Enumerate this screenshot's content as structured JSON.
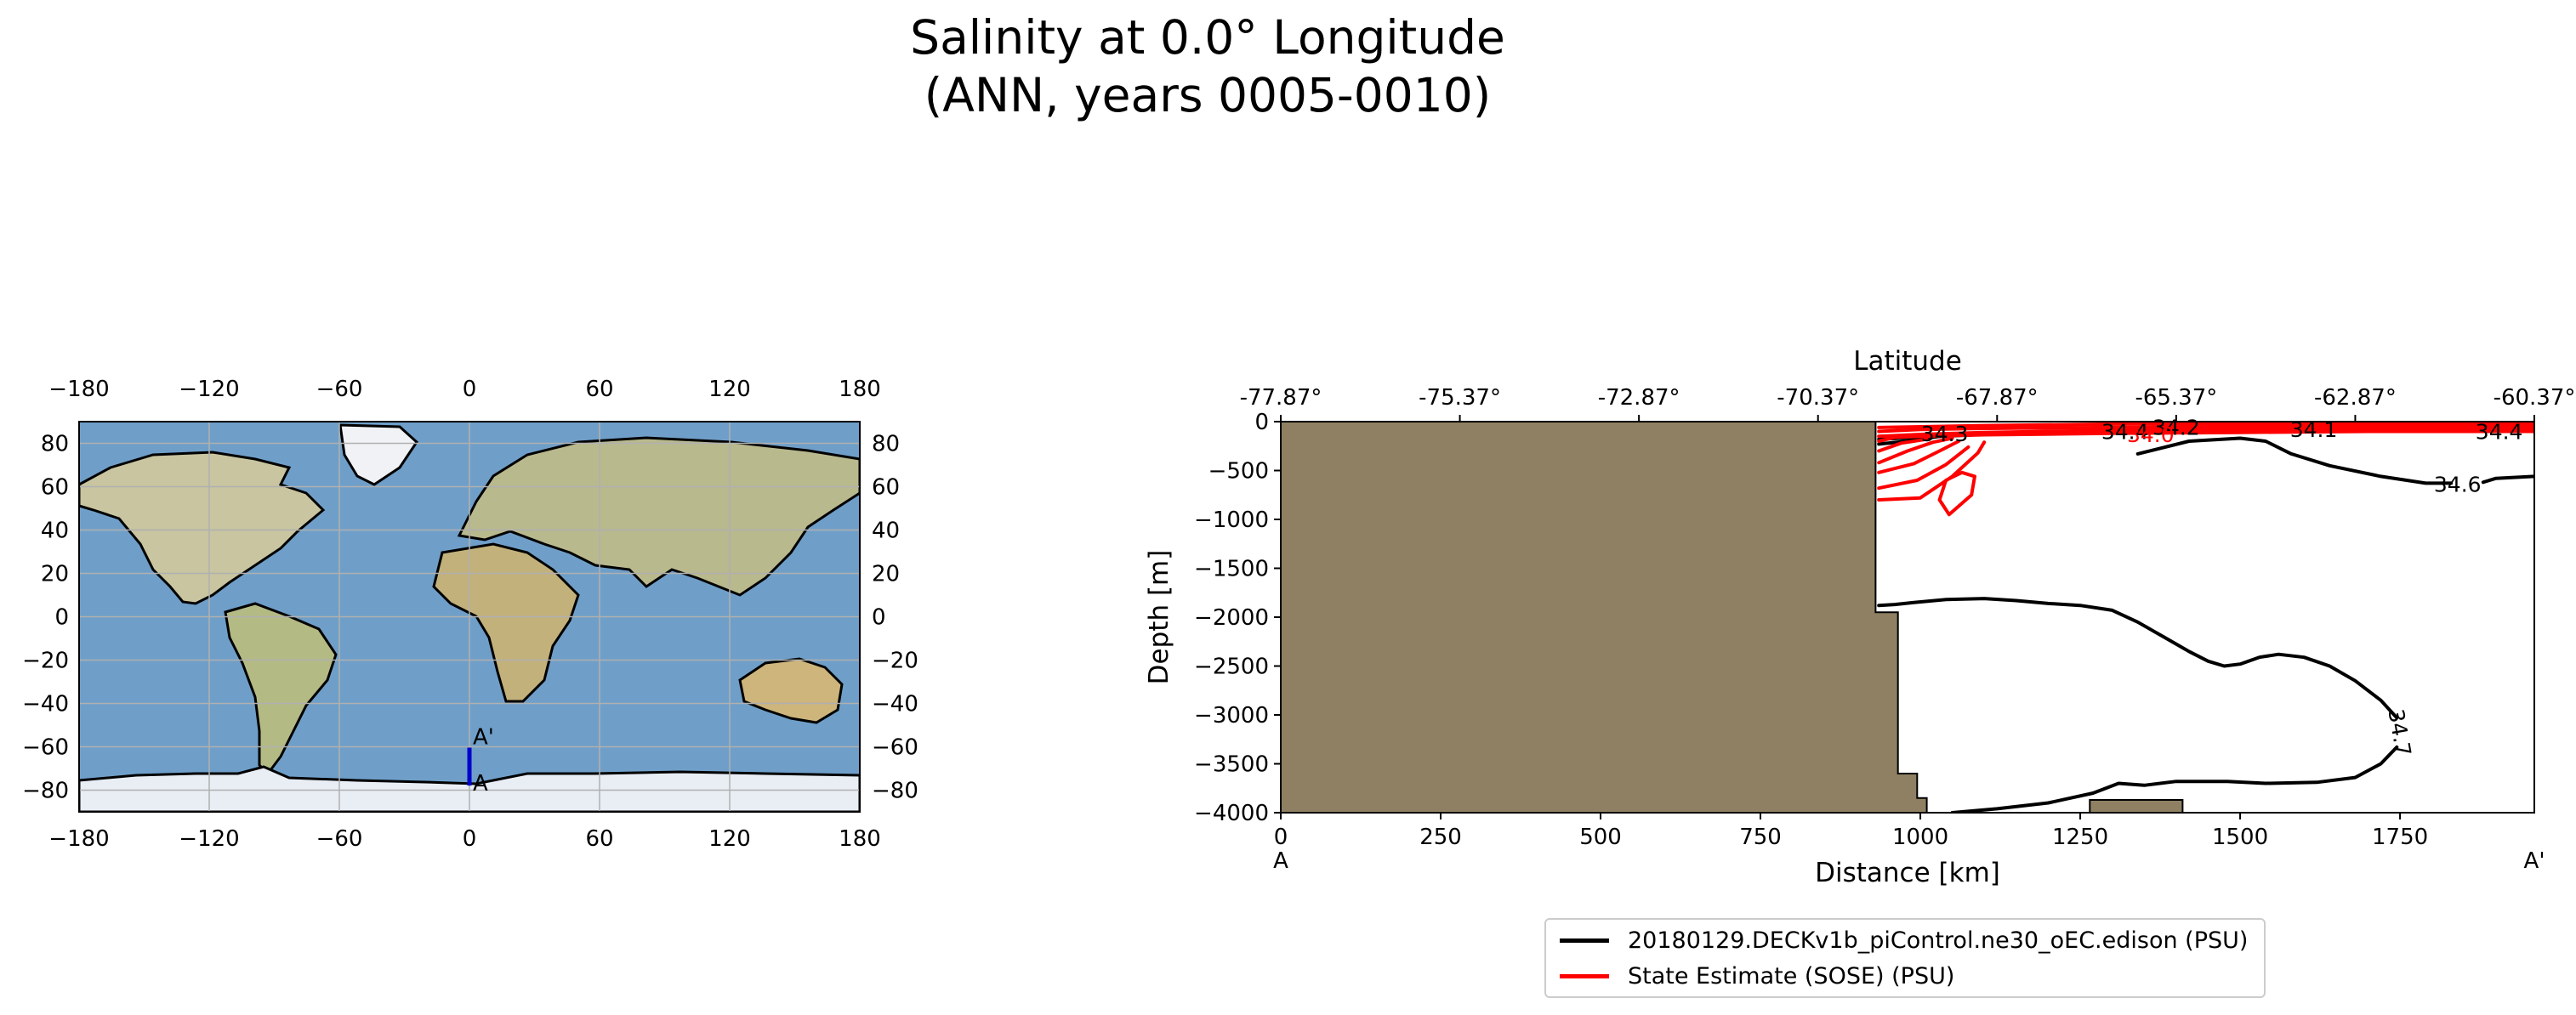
{
  "figure": {
    "title_line1": "Salinity at 0.0° Longitude",
    "title_line2": "(ANN, years 0005-0010)"
  },
  "chart_data": [
    {
      "type": "map",
      "projection": "PlateCarree",
      "xlim": [
        -180,
        180
      ],
      "ylim": [
        -90,
        90
      ],
      "xticks": [
        -180,
        -120,
        -60,
        0,
        60,
        120,
        180
      ],
      "yticks": [
        -80,
        -60,
        -40,
        -20,
        0,
        20,
        40,
        60,
        80
      ],
      "grid": true,
      "transect": {
        "color": "#0000cc",
        "lon": 0.0,
        "lat_start": -77.87,
        "lat_end": -60.37,
        "start_label": "A",
        "end_label": "A'"
      }
    },
    {
      "type": "contour",
      "xlabel": "Distance [km]",
      "ylabel": "Depth [m]",
      "top_xlabel": "Latitude",
      "xlim": [
        0,
        1960
      ],
      "ylim": [
        -4000,
        0
      ],
      "xticks": [
        0,
        250,
        500,
        750,
        1000,
        1250,
        1500,
        1750
      ],
      "yticks": [
        0,
        -500,
        -1000,
        -1500,
        -2000,
        -2500,
        -3000,
        -3500,
        -4000
      ],
      "top_ticks": [
        {
          "x": 0,
          "label": "-77.87°"
        },
        {
          "x": 280,
          "label": "-75.37°"
        },
        {
          "x": 560,
          "label": "-72.87°"
        },
        {
          "x": 840,
          "label": "-70.37°"
        },
        {
          "x": 1120,
          "label": "-67.87°"
        },
        {
          "x": 1400,
          "label": "-65.37°"
        },
        {
          "x": 1680,
          "label": "-62.87°"
        },
        {
          "x": 1960,
          "label": "-60.37°"
        }
      ],
      "start_label": "A",
      "end_label": "A'",
      "land_color": "#8f8063",
      "land_profile": [
        [
          0,
          0
        ],
        [
          930,
          0
        ],
        [
          930,
          -1950
        ],
        [
          965,
          -1950
        ],
        [
          965,
          -3600
        ],
        [
          995,
          -3600
        ],
        [
          995,
          -3850
        ],
        [
          1010,
          -3850
        ],
        [
          1010,
          -4000
        ],
        [
          0,
          -4000
        ]
      ],
      "seamount": [
        [
          1265,
          -4000
        ],
        [
          1265,
          -3870
        ],
        [
          1410,
          -3870
        ],
        [
          1410,
          -4000
        ]
      ],
      "series": [
        {
          "name": "20180129.DECKv1b_piControl.ne30_oEC.edison (PSU)",
          "color": "#000000",
          "contours": [
            {
              "points": [
                [
                  935,
                  -180
                ],
                [
                  1000,
                  -160
                ],
                [
                  1100,
                  -130
                ],
                [
                  1200,
                  -110
                ],
                [
                  1300,
                  -100
                ],
                [
                  1400,
                  -90
                ],
                [
                  1500,
                  -80
                ],
                [
                  1600,
                  -70
                ],
                [
                  1700,
                  -60
                ],
                [
                  1800,
                  -55
                ],
                [
                  1960,
                  -50
                ]
              ]
            },
            {
              "points": [
                [
                  935,
                  -230
                ],
                [
                  980,
                  -200
                ],
                [
                  1030,
                  -150
                ]
              ]
            },
            {
              "points": [
                [
                  1340,
                  -330
                ],
                [
                  1420,
                  -200
                ],
                [
                  1500,
                  -170
                ],
                [
                  1540,
                  -200
                ],
                [
                  1580,
                  -330
                ],
                [
                  1640,
                  -450
                ],
                [
                  1720,
                  -560
                ],
                [
                  1790,
                  -630
                ],
                [
                  1830,
                  -630
                ]
              ]
            },
            {
              "points": [
                [
                  1880,
                  -620
                ],
                [
                  1900,
                  -580
                ],
                [
                  1960,
                  -560
                ]
              ]
            },
            {
              "points": [
                [
                  935,
                  -1880
                ],
                [
                  960,
                  -1870
                ],
                [
                  990,
                  -1850
                ],
                [
                  1040,
                  -1820
                ],
                [
                  1100,
                  -1810
                ],
                [
                  1150,
                  -1830
                ],
                [
                  1200,
                  -1860
                ],
                [
                  1250,
                  -1880
                ],
                [
                  1300,
                  -1930
                ],
                [
                  1340,
                  -2050
                ],
                [
                  1380,
                  -2200
                ],
                [
                  1420,
                  -2350
                ],
                [
                  1450,
                  -2450
                ],
                [
                  1475,
                  -2500
                ],
                [
                  1500,
                  -2480
                ],
                [
                  1530,
                  -2410
                ],
                [
                  1560,
                  -2380
                ],
                [
                  1600,
                  -2410
                ],
                [
                  1640,
                  -2500
                ],
                [
                  1680,
                  -2650
                ],
                [
                  1720,
                  -2850
                ],
                [
                  1745,
                  -3030
                ]
              ]
            },
            {
              "points": [
                [
                  1745,
                  -3330
                ],
                [
                  1720,
                  -3500
                ],
                [
                  1680,
                  -3640
                ],
                [
                  1620,
                  -3690
                ],
                [
                  1540,
                  -3700
                ],
                [
                  1480,
                  -3680
                ],
                [
                  1400,
                  -3680
                ],
                [
                  1350,
                  -3720
                ],
                [
                  1310,
                  -3700
                ],
                [
                  1270,
                  -3800
                ],
                [
                  1200,
                  -3900
                ],
                [
                  1120,
                  -3960
                ],
                [
                  1050,
                  -4000
                ]
              ]
            }
          ],
          "labels": [
            {
              "x": 1038,
              "y": -120,
              "text": "34.3"
            },
            {
              "x": 1320,
              "y": -100,
              "text": "34.4"
            },
            {
              "x": 1400,
              "y": -55,
              "text": "34.2"
            },
            {
              "x": 1615,
              "y": -80,
              "text": "34.1"
            },
            {
              "x": 1905,
              "y": -100,
              "text": "34.4"
            },
            {
              "x": 1840,
              "y": -640,
              "text": "34.6"
            },
            {
              "x": 1750,
              "y": -3180,
              "text": "34.7",
              "rotate": 80
            }
          ]
        },
        {
          "name": "State Estimate (SOSE) (PSU)",
          "color": "#ff0000",
          "contours": [
            {
              "points": [
                [
                  935,
                  -60
                ],
                [
                  1100,
                  -40
                ],
                [
                  1300,
                  -25
                ],
                [
                  1500,
                  -20
                ],
                [
                  1700,
                  -20
                ],
                [
                  1960,
                  -20
                ]
              ]
            },
            {
              "points": [
                [
                  935,
                  -100
                ],
                [
                  1000,
                  -80
                ],
                [
                  1100,
                  -70
                ],
                [
                  1300,
                  -60
                ],
                [
                  1500,
                  -50
                ],
                [
                  1700,
                  -45
                ],
                [
                  1960,
                  -45
                ]
              ]
            },
            {
              "points": [
                [
                  935,
                  -150
                ],
                [
                  1000,
                  -130
                ],
                [
                  1100,
                  -110
                ],
                [
                  1300,
                  -90
                ],
                [
                  1500,
                  -80
                ],
                [
                  1700,
                  -70
                ],
                [
                  1960,
                  -70
                ]
              ]
            },
            {
              "points": [
                [
                  935,
                  -200
                ],
                [
                  960,
                  -160
                ],
                [
                  1000,
                  -150
                ],
                [
                  1100,
                  -135
                ],
                [
                  1300,
                  -120
                ],
                [
                  1500,
                  -110
                ],
                [
                  1700,
                  -100
                ],
                [
                  1960,
                  -100
                ]
              ]
            },
            {
              "points": [
                [
                  935,
                  -300
                ],
                [
                  970,
                  -220
                ],
                [
                  1010,
                  -180
                ]
              ]
            },
            {
              "points": [
                [
                  935,
                  -420
                ],
                [
                  980,
                  -300
                ],
                [
                  1020,
                  -210
                ],
                [
                  1050,
                  -170
                ]
              ]
            },
            {
              "points": [
                [
                  935,
                  -520
                ],
                [
                  990,
                  -430
                ],
                [
                  1030,
                  -300
                ],
                [
                  1060,
                  -200
                ]
              ]
            },
            {
              "points": [
                [
                  935,
                  -680
                ],
                [
                  995,
                  -600
                ],
                [
                  1040,
                  -440
                ],
                [
                  1075,
                  -260
                ]
              ]
            },
            {
              "points": [
                [
                  935,
                  -800
                ],
                [
                  1000,
                  -780
                ],
                [
                  1050,
                  -560
                ],
                [
                  1090,
                  -320
                ],
                [
                  1100,
                  -210
                ]
              ]
            },
            {
              "points": [
                [
                  1030,
                  -800
                ],
                [
                  1040,
                  -600
                ],
                [
                  1065,
                  -520
                ],
                [
                  1085,
                  -560
                ],
                [
                  1080,
                  -750
                ],
                [
                  1045,
                  -950
                ],
                [
                  1030,
                  -800
                ]
              ]
            }
          ],
          "labels": [
            {
              "x": 1360,
              "y": -130,
              "text": "34.0"
            }
          ]
        }
      ]
    }
  ]
}
